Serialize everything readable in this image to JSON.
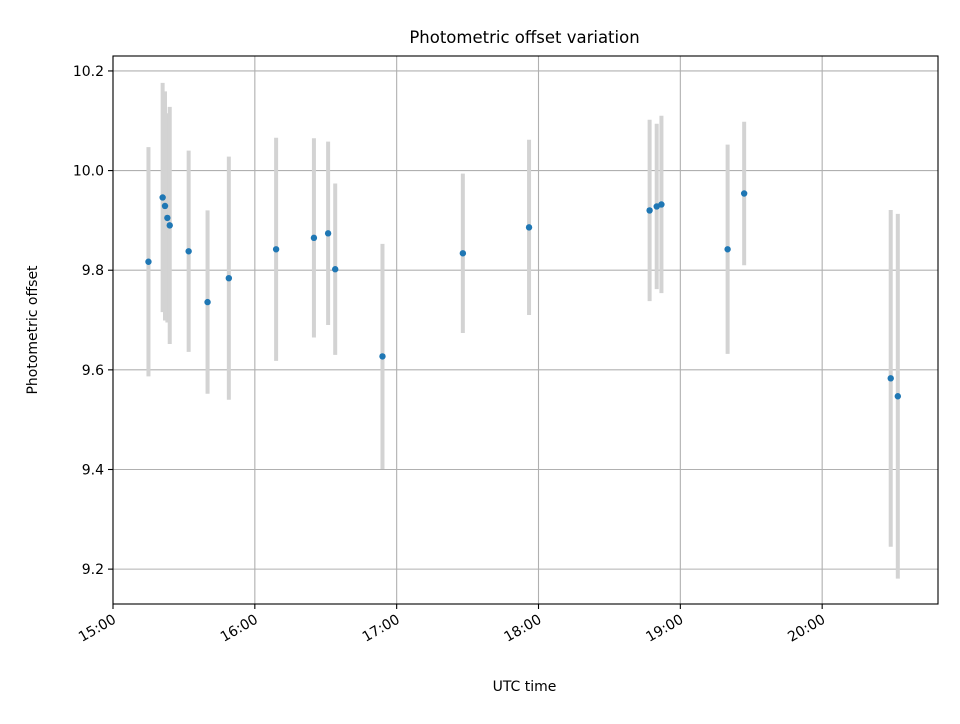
{
  "chart_data": {
    "type": "scatter",
    "title": "Photometric offset variation",
    "xlabel": "UTC time",
    "ylabel": "Photometric offset",
    "x_scale": "time",
    "xlim": [
      "15:00",
      "20:49"
    ],
    "ylim": [
      9.13,
      10.23
    ],
    "x_ticks": [
      "15:00",
      "16:00",
      "17:00",
      "18:00",
      "19:00",
      "20:00"
    ],
    "y_ticks": [
      "9.2",
      "9.4",
      "9.6",
      "9.8",
      "10.0",
      "10.2"
    ],
    "grid": true,
    "legend": false,
    "colors": {
      "points": "#1f77b4",
      "error_bars": "#d3d3d3"
    },
    "points": [
      {
        "x": "15:15",
        "y": 9.817,
        "y_low": 9.587,
        "y_high": 10.047
      },
      {
        "x": "15:21",
        "y": 9.946,
        "y_low": 9.716,
        "y_high": 10.176
      },
      {
        "x": "15:22",
        "y": 9.929,
        "y_low": 9.699,
        "y_high": 10.159
      },
      {
        "x": "15:23",
        "y": 9.905,
        "y_low": 9.695,
        "y_high": 10.115
      },
      {
        "x": "15:24",
        "y": 9.89,
        "y_low": 9.652,
        "y_high": 10.128
      },
      {
        "x": "15:32",
        "y": 9.838,
        "y_low": 9.636,
        "y_high": 10.04
      },
      {
        "x": "15:40",
        "y": 9.736,
        "y_low": 9.552,
        "y_high": 9.92
      },
      {
        "x": "15:49",
        "y": 9.784,
        "y_low": 9.54,
        "y_high": 10.028
      },
      {
        "x": "16:09",
        "y": 9.842,
        "y_low": 9.618,
        "y_high": 10.066
      },
      {
        "x": "16:25",
        "y": 9.865,
        "y_low": 9.665,
        "y_high": 10.065
      },
      {
        "x": "16:31",
        "y": 9.874,
        "y_low": 9.69,
        "y_high": 10.058
      },
      {
        "x": "16:34",
        "y": 9.802,
        "y_low": 9.63,
        "y_high": 9.974
      },
      {
        "x": "16:54",
        "y": 9.627,
        "y_low": 9.401,
        "y_high": 9.853
      },
      {
        "x": "17:28",
        "y": 9.834,
        "y_low": 9.674,
        "y_high": 9.994
      },
      {
        "x": "17:56",
        "y": 9.886,
        "y_low": 9.71,
        "y_high": 10.062
      },
      {
        "x": "18:47",
        "y": 9.92,
        "y_low": 9.738,
        "y_high": 10.102
      },
      {
        "x": "18:50",
        "y": 9.928,
        "y_low": 9.762,
        "y_high": 10.094
      },
      {
        "x": "18:52",
        "y": 9.932,
        "y_low": 9.754,
        "y_high": 10.11
      },
      {
        "x": "19:20",
        "y": 9.842,
        "y_low": 9.632,
        "y_high": 10.052
      },
      {
        "x": "19:27",
        "y": 9.954,
        "y_low": 9.81,
        "y_high": 10.098
      },
      {
        "x": "20:29",
        "y": 9.583,
        "y_low": 9.245,
        "y_high": 9.921
      },
      {
        "x": "20:32",
        "y": 9.547,
        "y_low": 9.181,
        "y_high": 9.913
      }
    ]
  }
}
